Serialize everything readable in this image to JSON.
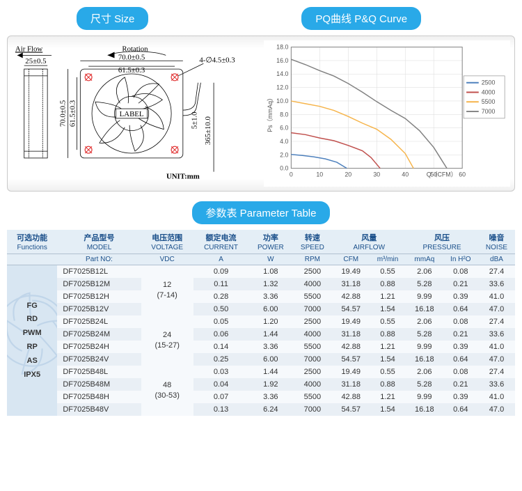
{
  "labels": {
    "size": "尺寸 Size",
    "pq": "PQ曲线 P&Q Curve",
    "paramTable": "参数表 Parameter Table"
  },
  "diagram": {
    "airflow": "Air Flow",
    "rotation": "Rotation",
    "unit": "UNIT:mm",
    "label": "LABEL",
    "dims": {
      "width": "70.0±0.5",
      "holePitch": "61.5±0.3",
      "height": "70.0±0.5",
      "holePitchV": "61.5±0.3",
      "depth": "25±0.5",
      "hole": "4-∅4.5±0.3",
      "cable1": "5±1.0",
      "cable2": "365±10.0"
    }
  },
  "pq": {
    "ylabel": "Ps（mmAq）",
    "xlabel": "Q（CFM）",
    "ylim": [
      0,
      18
    ],
    "xlim": [
      0,
      60
    ],
    "ytick_step": 2,
    "xtick_step": 10,
    "title_fontsize": 10,
    "background_color": "#ffffff",
    "grid_color": "#d9d9d9",
    "axis_color": "#808080",
    "line_width": 1.5,
    "series": [
      {
        "name": "2500",
        "color": "#4e81bd",
        "points": [
          [
            0,
            2.06
          ],
          [
            4,
            1.9
          ],
          [
            8,
            1.7
          ],
          [
            12,
            1.4
          ],
          [
            16,
            0.9
          ],
          [
            19.5,
            0
          ]
        ]
      },
      {
        "name": "4000",
        "color": "#c0504d",
        "points": [
          [
            0,
            5.28
          ],
          [
            5,
            5.0
          ],
          [
            10,
            4.5
          ],
          [
            15,
            4.1
          ],
          [
            20,
            3.4
          ],
          [
            25,
            2.6
          ],
          [
            28,
            1.6
          ],
          [
            31.2,
            0
          ]
        ]
      },
      {
        "name": "5500",
        "color": "#f6b44a",
        "points": [
          [
            0,
            9.99
          ],
          [
            5,
            9.6
          ],
          [
            10,
            9.2
          ],
          [
            15,
            8.6
          ],
          [
            20,
            7.7
          ],
          [
            25,
            6.7
          ],
          [
            30,
            5.8
          ],
          [
            35,
            4.3
          ],
          [
            40,
            2.2
          ],
          [
            42.9,
            0
          ]
        ]
      },
      {
        "name": "7000",
        "color": "#808080",
        "points": [
          [
            0,
            16.18
          ],
          [
            5,
            15.4
          ],
          [
            10,
            14.5
          ],
          [
            15,
            13.7
          ],
          [
            20,
            12.6
          ],
          [
            25,
            11.3
          ],
          [
            30,
            9.9
          ],
          [
            35,
            8.6
          ],
          [
            40,
            7.4
          ],
          [
            45,
            5.6
          ],
          [
            50,
            3.1
          ],
          [
            54.6,
            0
          ]
        ]
      }
    ]
  },
  "table": {
    "headers": [
      {
        "cn": "可选功能",
        "en": "Functions"
      },
      {
        "cn": "产品型号",
        "en": "MODEL"
      },
      {
        "cn": "电压范围",
        "en": "VOLTAGE"
      },
      {
        "cn": "额定电流",
        "en": "CURRENT"
      },
      {
        "cn": "功率",
        "en": "POWER"
      },
      {
        "cn": "转速",
        "en": "SPEED"
      },
      {
        "cn": "风量",
        "en": "AIRFLOW",
        "colspan": 2
      },
      {
        "cn": "风压",
        "en": "PRESSURE",
        "colspan": 2
      },
      {
        "cn": "噪音",
        "en": "NOISE"
      }
    ],
    "units": [
      "",
      "Part NO:",
      "VDC",
      "A",
      "W",
      "RPM",
      "CFM",
      "m³/min",
      "mmAq",
      "In H²O",
      "dBA"
    ],
    "functions": [
      "FG",
      "RD",
      "PWM",
      "RP",
      "AS",
      "IPX5"
    ],
    "voltageGroups": [
      {
        "value": "12",
        "range": "(7-14)",
        "rowspan": 4
      },
      {
        "value": "24",
        "range": "(15-27)",
        "rowspan": 4
      },
      {
        "value": "48",
        "range": "(30-53)",
        "rowspan": 4
      }
    ],
    "rows": [
      [
        "DF7025B12L",
        "0.09",
        "1.08",
        "2500",
        "19.49",
        "0.55",
        "2.06",
        "0.08",
        "27.4"
      ],
      [
        "DF7025B12M",
        "0.11",
        "1.32",
        "4000",
        "31.18",
        "0.88",
        "5.28",
        "0.21",
        "33.6"
      ],
      [
        "DF7025B12H",
        "0.28",
        "3.36",
        "5500",
        "42.88",
        "1.21",
        "9.99",
        "0.39",
        "41.0"
      ],
      [
        "DF7025B12V",
        "0.50",
        "6.00",
        "7000",
        "54.57",
        "1.54",
        "16.18",
        "0.64",
        "47.0"
      ],
      [
        "DF7025B24L",
        "0.05",
        "1.20",
        "2500",
        "19.49",
        "0.55",
        "2.06",
        "0.08",
        "27.4"
      ],
      [
        "DF7025B24M",
        "0.06",
        "1.44",
        "4000",
        "31.18",
        "0.88",
        "5.28",
        "0.21",
        "33.6"
      ],
      [
        "DF7025B24H",
        "0.14",
        "3.36",
        "5500",
        "42.88",
        "1.21",
        "9.99",
        "0.39",
        "41.0"
      ],
      [
        "DF7025B24V",
        "0.25",
        "6.00",
        "7000",
        "54.57",
        "1.54",
        "16.18",
        "0.64",
        "47.0"
      ],
      [
        "DF7025B48L",
        "0.03",
        "1.44",
        "2500",
        "19.49",
        "0.55",
        "2.06",
        "0.08",
        "27.4"
      ],
      [
        "DF7025B48M",
        "0.04",
        "1.92",
        "4000",
        "31.18",
        "0.88",
        "5.28",
        "0.21",
        "33.6"
      ],
      [
        "DF7025B48H",
        "0.07",
        "3.36",
        "5500",
        "42.88",
        "1.21",
        "9.99",
        "0.39",
        "41.0"
      ],
      [
        "DF7025B48V",
        "0.13",
        "6.24",
        "7000",
        "54.57",
        "1.54",
        "16.18",
        "0.64",
        "47.0"
      ]
    ]
  }
}
